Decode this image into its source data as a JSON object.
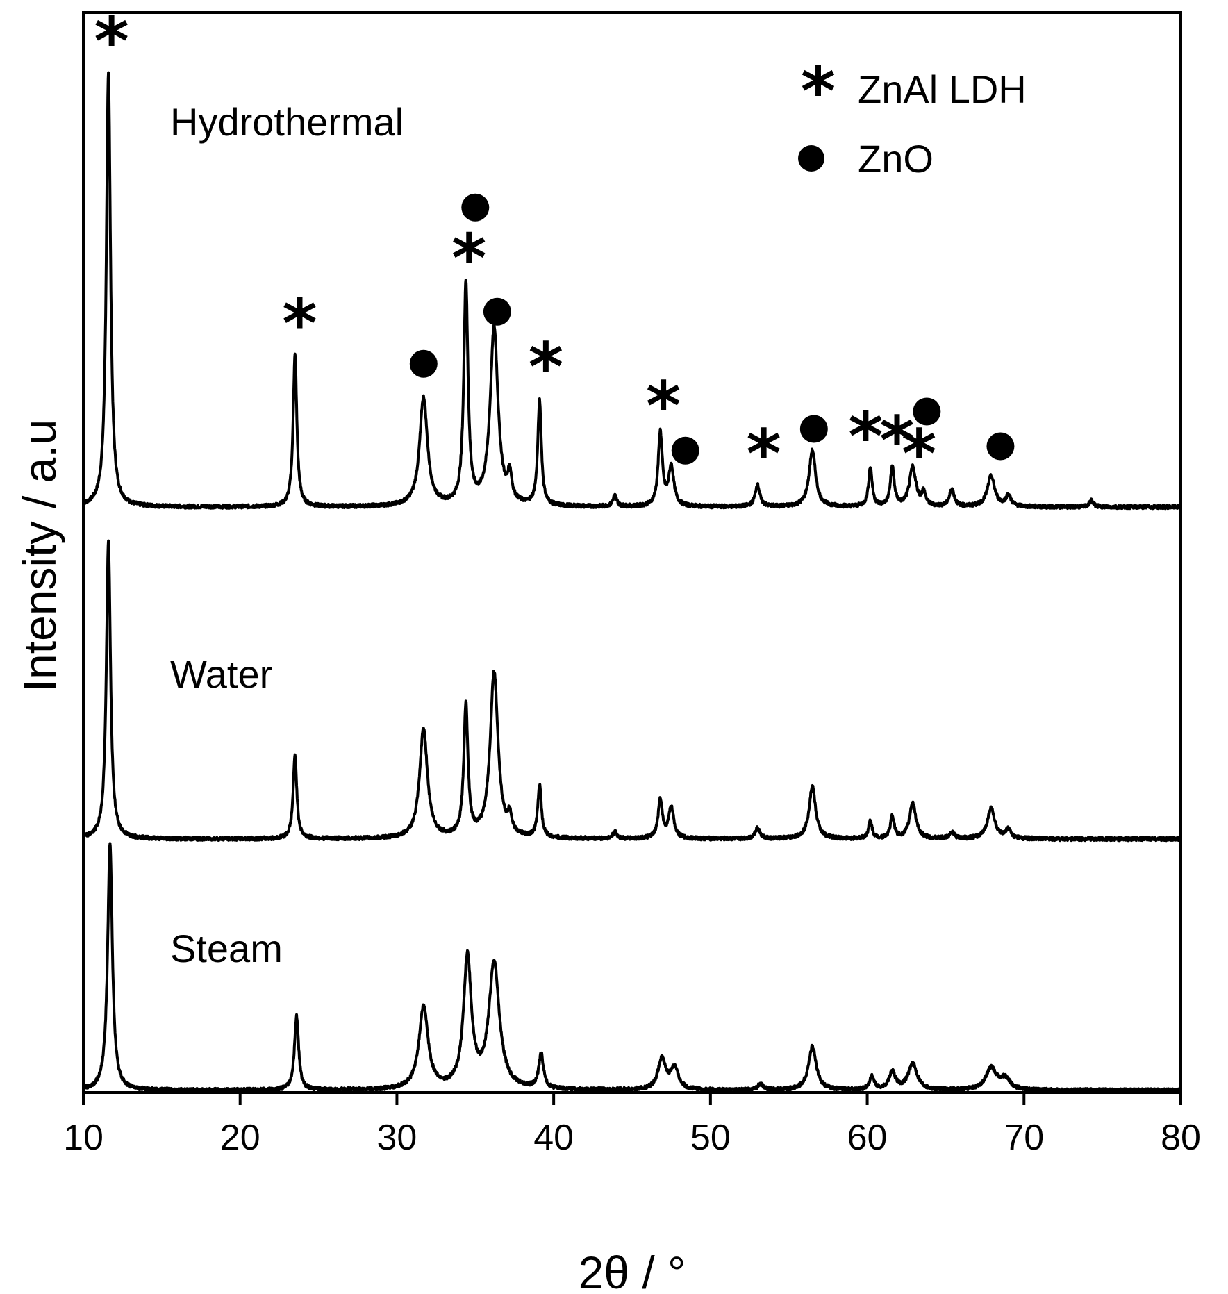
{
  "chart_data": {
    "type": "line",
    "title": "",
    "xlabel": "2θ / °",
    "ylabel": "Intensity  / a.u",
    "xlim": [
      10,
      80
    ],
    "x_ticks": [
      10,
      20,
      30,
      40,
      50,
      60,
      70,
      80
    ],
    "y_ticks_shown": false,
    "grid": false,
    "legend": {
      "placement": "top-right",
      "entries": [
        {
          "marker": "star",
          "label": "ZnAl  LDH"
        },
        {
          "marker": "dot",
          "label": "ZnO"
        }
      ]
    },
    "series": [
      {
        "name": "Hydrothermal",
        "baseline": 0.0,
        "peaks": [
          {
            "x": 11.6,
            "h": 1.0,
            "w": 0.16
          },
          {
            "x": 23.5,
            "h": 0.35,
            "w": 0.14
          },
          {
            "x": 31.7,
            "h": 0.25,
            "w": 0.3
          },
          {
            "x": 34.4,
            "h": 0.51,
            "w": 0.16
          },
          {
            "x": 36.2,
            "h": 0.41,
            "w": 0.3
          },
          {
            "x": 37.2,
            "h": 0.06,
            "w": 0.15
          },
          {
            "x": 39.1,
            "h": 0.24,
            "w": 0.14
          },
          {
            "x": 43.9,
            "h": 0.025,
            "w": 0.15
          },
          {
            "x": 46.8,
            "h": 0.17,
            "w": 0.16
          },
          {
            "x": 47.5,
            "h": 0.09,
            "w": 0.2
          },
          {
            "x": 53.0,
            "h": 0.05,
            "w": 0.18
          },
          {
            "x": 56.5,
            "h": 0.13,
            "w": 0.25
          },
          {
            "x": 60.2,
            "h": 0.09,
            "w": 0.14
          },
          {
            "x": 61.6,
            "h": 0.09,
            "w": 0.15
          },
          {
            "x": 62.9,
            "h": 0.09,
            "w": 0.25
          },
          {
            "x": 63.6,
            "h": 0.03,
            "w": 0.15
          },
          {
            "x": 65.4,
            "h": 0.04,
            "w": 0.18
          },
          {
            "x": 67.9,
            "h": 0.07,
            "w": 0.28
          },
          {
            "x": 69.0,
            "h": 0.025,
            "w": 0.2
          },
          {
            "x": 74.3,
            "h": 0.015,
            "w": 0.15
          }
        ]
      },
      {
        "name": "Water",
        "baseline": 0.0,
        "peaks": [
          {
            "x": 11.6,
            "h": 0.68,
            "w": 0.16
          },
          {
            "x": 23.5,
            "h": 0.19,
            "w": 0.14
          },
          {
            "x": 31.7,
            "h": 0.25,
            "w": 0.3
          },
          {
            "x": 34.4,
            "h": 0.3,
            "w": 0.16
          },
          {
            "x": 36.2,
            "h": 0.38,
            "w": 0.3
          },
          {
            "x": 37.2,
            "h": 0.04,
            "w": 0.15
          },
          {
            "x": 39.1,
            "h": 0.12,
            "w": 0.14
          },
          {
            "x": 43.9,
            "h": 0.015,
            "w": 0.15
          },
          {
            "x": 46.8,
            "h": 0.09,
            "w": 0.16
          },
          {
            "x": 47.5,
            "h": 0.07,
            "w": 0.2
          },
          {
            "x": 53.0,
            "h": 0.025,
            "w": 0.18
          },
          {
            "x": 56.5,
            "h": 0.12,
            "w": 0.25
          },
          {
            "x": 60.2,
            "h": 0.04,
            "w": 0.14
          },
          {
            "x": 61.6,
            "h": 0.05,
            "w": 0.15
          },
          {
            "x": 62.9,
            "h": 0.08,
            "w": 0.25
          },
          {
            "x": 65.4,
            "h": 0.015,
            "w": 0.18
          },
          {
            "x": 67.9,
            "h": 0.07,
            "w": 0.28
          },
          {
            "x": 69.0,
            "h": 0.02,
            "w": 0.2
          }
        ]
      },
      {
        "name": "Steam",
        "baseline": 0.0,
        "peaks": [
          {
            "x": 11.7,
            "h": 0.57,
            "w": 0.18
          },
          {
            "x": 23.6,
            "h": 0.17,
            "w": 0.16
          },
          {
            "x": 31.7,
            "h": 0.19,
            "w": 0.35
          },
          {
            "x": 34.5,
            "h": 0.3,
            "w": 0.3
          },
          {
            "x": 36.2,
            "h": 0.29,
            "w": 0.4
          },
          {
            "x": 39.2,
            "h": 0.08,
            "w": 0.18
          },
          {
            "x": 46.9,
            "h": 0.07,
            "w": 0.3
          },
          {
            "x": 47.7,
            "h": 0.05,
            "w": 0.3
          },
          {
            "x": 53.2,
            "h": 0.015,
            "w": 0.2
          },
          {
            "x": 56.5,
            "h": 0.1,
            "w": 0.3
          },
          {
            "x": 60.3,
            "h": 0.03,
            "w": 0.18
          },
          {
            "x": 61.6,
            "h": 0.04,
            "w": 0.25
          },
          {
            "x": 62.9,
            "h": 0.06,
            "w": 0.35
          },
          {
            "x": 67.9,
            "h": 0.05,
            "w": 0.4
          },
          {
            "x": 68.8,
            "h": 0.025,
            "w": 0.4
          }
        ]
      }
    ],
    "annotations": [
      {
        "marker": "star",
        "x": 11.8,
        "h": 1.08
      },
      {
        "marker": "star",
        "x": 23.8,
        "h": 0.43
      },
      {
        "marker": "dot",
        "x": 31.7,
        "h": 0.33
      },
      {
        "marker": "star",
        "x": 34.6,
        "h": 0.58
      },
      {
        "marker": "dot",
        "x": 35.0,
        "h": 0.69
      },
      {
        "marker": "dot",
        "x": 36.4,
        "h": 0.45
      },
      {
        "marker": "star",
        "x": 39.5,
        "h": 0.33
      },
      {
        "marker": "star",
        "x": 47.0,
        "h": 0.24
      },
      {
        "marker": "dot",
        "x": 48.4,
        "h": 0.13
      },
      {
        "marker": "star",
        "x": 53.4,
        "h": 0.13
      },
      {
        "marker": "dot",
        "x": 56.6,
        "h": 0.18
      },
      {
        "marker": "star",
        "x": 59.9,
        "h": 0.17
      },
      {
        "marker": "star",
        "x": 61.9,
        "h": 0.16
      },
      {
        "marker": "star",
        "x": 63.3,
        "h": 0.13
      },
      {
        "marker": "dot",
        "x": 63.8,
        "h": 0.22
      },
      {
        "marker": "dot",
        "x": 68.5,
        "h": 0.14
      }
    ]
  }
}
